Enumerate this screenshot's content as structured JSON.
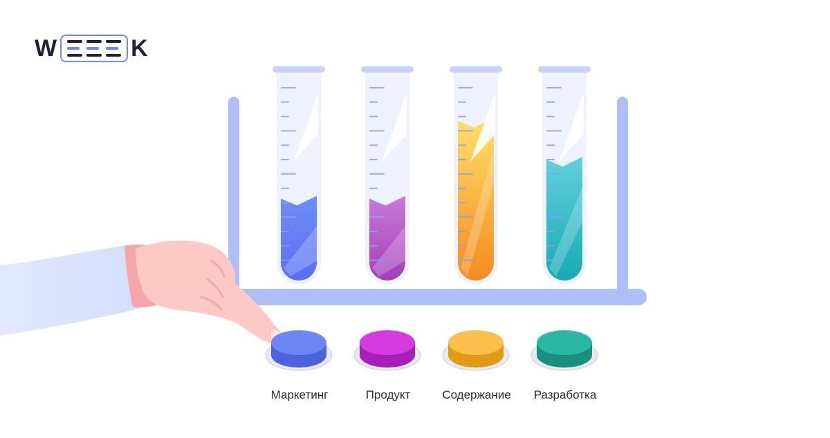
{
  "logo": {
    "text": "WEEEK",
    "first_letter": "W",
    "last_letter": "K",
    "accent_color": "#6b8af5"
  },
  "tubes": [
    {
      "name": "marketing",
      "fill_fraction": 0.42,
      "colors": [
        "#6f8ef7",
        "#5a6ef0"
      ]
    },
    {
      "name": "product",
      "fill_fraction": 0.42,
      "colors": [
        "#c97ad8",
        "#a23fb8"
      ]
    },
    {
      "name": "content",
      "fill_fraction": 0.82,
      "colors": [
        "#ffe06b",
        "#f58a1f"
      ]
    },
    {
      "name": "development",
      "fill_fraction": 0.62,
      "colors": [
        "#62d0dc",
        "#16aab4"
      ]
    }
  ],
  "buttons": [
    {
      "label": "Маркетинг",
      "top_color": "#6b86f5",
      "side_color": "#4e62e0"
    },
    {
      "label": "Продукт",
      "top_color": "#d63be0",
      "side_color": "#a81fb8"
    },
    {
      "label": "Содержание",
      "top_color": "#fbbd4c",
      "side_color": "#e39a13"
    },
    {
      "label": "Разработка",
      "top_color": "#2ab8a4",
      "side_color": "#17907f"
    }
  ],
  "rack_color": "#aebff8"
}
